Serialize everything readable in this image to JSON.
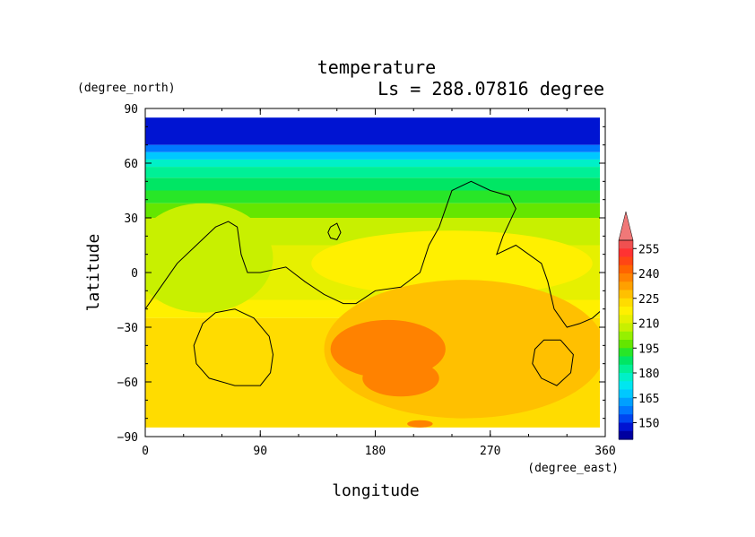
{
  "chart_data": {
    "type": "heatmap",
    "title": "temperature",
    "subtitle": "Ls = 288.07816 degree",
    "xlabel": "longitude",
    "ylabel": "latitude",
    "x_unit": "(degree_east)",
    "y_unit": "(degree_north)",
    "xlim": [
      0,
      360
    ],
    "ylim": [
      -90,
      90
    ],
    "x_ticks": [
      0,
      90,
      180,
      270,
      360
    ],
    "y_ticks": [
      90,
      60,
      30,
      0,
      -30,
      -60,
      -90
    ],
    "x_tick_labels": [
      "0",
      "90",
      "180",
      "270",
      "360"
    ],
    "y_tick_labels": [
      "90",
      "60",
      "30",
      "0",
      "−30",
      "−60",
      "−90"
    ],
    "colorbar": {
      "tick_labels": [
        "255",
        "240",
        "225",
        "210",
        "195",
        "180",
        "165",
        "150"
      ],
      "levels": [
        {
          "value": 142.5,
          "color": "#0000a0"
        },
        {
          "value": 147.5,
          "color": "#0014d2"
        },
        {
          "value": 152.5,
          "color": "#0046f0"
        },
        {
          "value": 157.5,
          "color": "#0078ff"
        },
        {
          "value": 162.5,
          "color": "#00a0ff"
        },
        {
          "value": 167.5,
          "color": "#00c8ff"
        },
        {
          "value": 172.5,
          "color": "#00e6f0"
        },
        {
          "value": 177.5,
          "color": "#00f0c8"
        },
        {
          "value": 182.5,
          "color": "#00f096"
        },
        {
          "value": 187.5,
          "color": "#00e664"
        },
        {
          "value": 192.5,
          "color": "#28e628"
        },
        {
          "value": 197.5,
          "color": "#64e600"
        },
        {
          "value": 202.5,
          "color": "#96f000"
        },
        {
          "value": 207.5,
          "color": "#c8f000"
        },
        {
          "value": 212.5,
          "color": "#e6f000"
        },
        {
          "value": 217.5,
          "color": "#fff000"
        },
        {
          "value": 222.5,
          "color": "#ffdc00"
        },
        {
          "value": 227.5,
          "color": "#ffc000"
        },
        {
          "value": 232.5,
          "color": "#ffa000"
        },
        {
          "value": 237.5,
          "color": "#ff8200"
        },
        {
          "value": 242.5,
          "color": "#ff6400"
        },
        {
          "value": 247.5,
          "color": "#ff4614"
        },
        {
          "value": 252.5,
          "color": "#ff3232"
        },
        {
          "value": 257.5,
          "color": "#f05050"
        }
      ],
      "overflow_color": "#f07878"
    },
    "bands": [
      {
        "lat_top": 85,
        "lat_bot": 70,
        "value": 145
      },
      {
        "lat_top": 70,
        "lat_bot": 66,
        "value": 155
      },
      {
        "lat_top": 66,
        "lat_bot": 62,
        "value": 165
      },
      {
        "lat_top": 62,
        "lat_bot": 58,
        "value": 175
      },
      {
        "lat_top": 58,
        "lat_bot": 52,
        "value": 180
      },
      {
        "lat_top": 52,
        "lat_bot": 45,
        "value": 185
      },
      {
        "lat_top": 45,
        "lat_bot": 38,
        "value": 190
      },
      {
        "lat_top": 38,
        "lat_bot": 30,
        "value": 197
      },
      {
        "lat_top": 30,
        "lat_bot": 15,
        "value": 205
      },
      {
        "lat_top": 15,
        "lat_bot": -15,
        "value": 210
      },
      {
        "lat_top": -15,
        "lat_bot": -25,
        "value": 217
      },
      {
        "lat_top": -25,
        "lat_bot": -75,
        "value": 222
      },
      {
        "lat_top": -75,
        "lat_bot": -85,
        "value": 220
      }
    ],
    "patches": [
      {
        "cx": 240,
        "cy": 5,
        "rx": 110,
        "ry": 18,
        "value": 215
      },
      {
        "cx": 250,
        "cy": -42,
        "rx": 110,
        "ry": 38,
        "value": 228
      },
      {
        "cx": 190,
        "cy": -42,
        "rx": 45,
        "ry": 16,
        "value": 235
      },
      {
        "cx": 200,
        "cy": -58,
        "rx": 30,
        "ry": 10,
        "value": 235
      },
      {
        "cx": 215,
        "cy": -83,
        "rx": 10,
        "ry": 2,
        "value": 235
      },
      {
        "cx": 45,
        "cy": 8,
        "rx": 55,
        "ry": 30,
        "value": 205
      }
    ],
    "contours": [
      {
        "points": [
          [
            0,
            -20
          ],
          [
            10,
            -10
          ],
          [
            25,
            5
          ],
          [
            40,
            15
          ],
          [
            55,
            25
          ],
          [
            65,
            28
          ],
          [
            72,
            25
          ],
          [
            75,
            10
          ],
          [
            80,
            0
          ],
          [
            90,
            0
          ],
          [
            110,
            3
          ],
          [
            125,
            -5
          ],
          [
            140,
            -12
          ],
          [
            155,
            -17
          ],
          [
            165,
            -17
          ],
          [
            180,
            -10
          ],
          [
            200,
            -8
          ],
          [
            215,
            0
          ],
          [
            222,
            15
          ],
          [
            230,
            25
          ],
          [
            235,
            35
          ],
          [
            240,
            45
          ],
          [
            255,
            50
          ],
          [
            270,
            45
          ],
          [
            285,
            42
          ],
          [
            290,
            35
          ],
          [
            280,
            20
          ],
          [
            275,
            10
          ],
          [
            290,
            15
          ],
          [
            310,
            5
          ],
          [
            315,
            -5
          ],
          [
            320,
            -20
          ],
          [
            330,
            -30
          ],
          [
            340,
            -28
          ],
          [
            350,
            -25
          ],
          [
            358,
            -20
          ]
        ]
      },
      {
        "points": [
          [
            145,
            25
          ],
          [
            150,
            27
          ],
          [
            153,
            22
          ],
          [
            150,
            18
          ],
          [
            145,
            19
          ],
          [
            143,
            22
          ],
          [
            145,
            25
          ]
        ]
      },
      {
        "points": [
          [
            70,
            -20
          ],
          [
            85,
            -25
          ],
          [
            97,
            -35
          ],
          [
            100,
            -45
          ],
          [
            98,
            -55
          ],
          [
            90,
            -62
          ],
          [
            70,
            -62
          ],
          [
            50,
            -58
          ],
          [
            40,
            -50
          ],
          [
            38,
            -40
          ],
          [
            45,
            -28
          ],
          [
            55,
            -22
          ],
          [
            70,
            -20
          ]
        ]
      },
      {
        "points": [
          [
            325,
            -37
          ],
          [
            335,
            -45
          ],
          [
            333,
            -55
          ],
          [
            322,
            -62
          ],
          [
            310,
            -58
          ],
          [
            303,
            -50
          ],
          [
            305,
            -42
          ],
          [
            312,
            -37
          ],
          [
            325,
            -37
          ]
        ]
      }
    ]
  }
}
